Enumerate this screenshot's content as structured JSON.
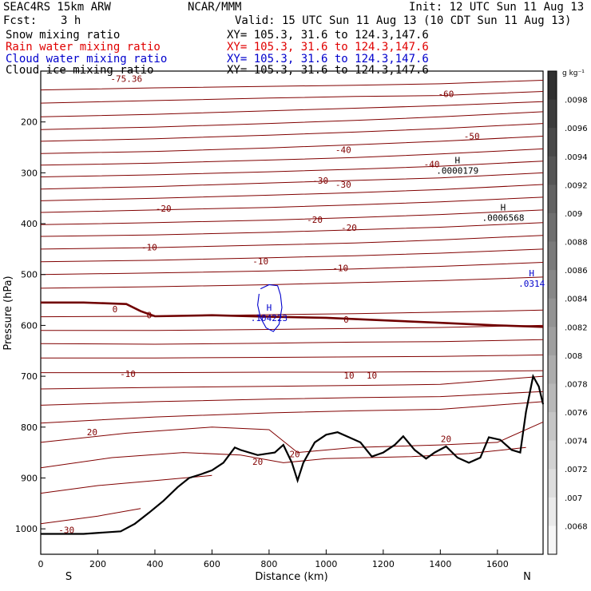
{
  "header": {
    "model": "SEAC4RS 15km ARW",
    "org": "NCAR/MMM",
    "init": "Init: 12 UTC Sun 11 Aug 13",
    "fcst_label": "Fcst:",
    "fcst_value": "3 h",
    "valid": "Valid: 15 UTC Sun 11 Aug 13 (10 CDT Sun 11 Aug 13)"
  },
  "fields": [
    {
      "name": "Snow mixing ratio",
      "xy": "XY= 105.3, 31.6 to 124.3,147.6",
      "color": "#000000"
    },
    {
      "name": "Rain water mixing ratio",
      "xy": "XY= 105.3, 31.6 to 124.3,147.6",
      "color": "#e00000"
    },
    {
      "name": "Cloud water mixing ratio",
      "xy": "XY= 105.3, 31.6 to 124.3,147.6",
      "color": "#0000cc"
    },
    {
      "name": "Cloud ice mixing ratio",
      "xy": "XY= 105.3, 31.6 to 124.3,147.6",
      "color": "#000000"
    }
  ],
  "chart_data": {
    "type": "line",
    "xlabel": "Distance (km)",
    "ylabel": "Pressure (hPa)",
    "xlim": [
      0,
      1760
    ],
    "ylim": [
      1050,
      100
    ],
    "x_ticks": [
      0,
      200,
      400,
      600,
      800,
      1000,
      1200,
      1400,
      1600
    ],
    "y_ticks": [
      200,
      300,
      400,
      500,
      600,
      700,
      800,
      900,
      1000
    ],
    "direction_left": "S",
    "direction_right": "N",
    "contour_color": "#800000",
    "zero_isotherm_color": "#700000",
    "terrain_color": "#000000",
    "cloud_water_color": "#0000cc",
    "isotherms": [
      {
        "x": [
          0,
          400,
          800,
          1100,
          1400,
          1760
        ],
        "p": [
          137,
          133,
          130,
          128,
          125,
          118
        ]
      },
      {
        "x": [
          0,
          400,
          800,
          1100,
          1400,
          1760
        ],
        "p": [
          163,
          158,
          153,
          150,
          148,
          140
        ]
      },
      {
        "x": [
          0,
          400,
          800,
          1100,
          1400,
          1760
        ],
        "p": [
          190,
          185,
          178,
          173,
          168,
          160
        ]
      },
      {
        "x": [
          0,
          400,
          800,
          1100,
          1400,
          1760
        ],
        "p": [
          215,
          210,
          203,
          197,
          190,
          180
        ]
      },
      {
        "x": [
          0,
          400,
          800,
          1100,
          1400,
          1760
        ],
        "p": [
          238,
          233,
          226,
          220,
          213,
          203
        ]
      },
      {
        "x": [
          0,
          400,
          800,
          1100,
          1400,
          1760
        ],
        "p": [
          262,
          258,
          251,
          245,
          238,
          228
        ]
      },
      {
        "x": [
          0,
          400,
          800,
          1100,
          1400,
          1760
        ],
        "p": [
          285,
          281,
          275,
          270,
          263,
          253
        ]
      },
      {
        "x": [
          0,
          400,
          800,
          1100,
          1400,
          1760
        ],
        "p": [
          308,
          304,
          298,
          293,
          287,
          277
        ]
      },
      {
        "x": [
          0,
          400,
          800,
          1100,
          1400,
          1760
        ],
        "p": [
          332,
          327,
          320,
          315,
          310,
          300
        ]
      },
      {
        "x": [
          0,
          400,
          800,
          1100,
          1400,
          1760
        ],
        "p": [
          355,
          350,
          344,
          339,
          333,
          323
        ]
      },
      {
        "x": [
          0,
          400,
          800,
          1100,
          1400,
          1760
        ],
        "p": [
          378,
          373,
          368,
          363,
          357,
          348
        ]
      },
      {
        "x": [
          0,
          400,
          800,
          1100,
          1400,
          1760
        ],
        "p": [
          402,
          398,
          393,
          388,
          382,
          373
        ]
      },
      {
        "x": [
          0,
          400,
          800,
          1100,
          1400,
          1760
        ],
        "p": [
          425,
          422,
          417,
          412,
          407,
          398
        ]
      },
      {
        "x": [
          0,
          400,
          800,
          1100,
          1400,
          1760
        ],
        "p": [
          450,
          447,
          442,
          438,
          432,
          423
        ]
      },
      {
        "x": [
          0,
          400,
          800,
          1100,
          1400,
          1760
        ],
        "p": [
          475,
          472,
          467,
          463,
          458,
          450
        ]
      },
      {
        "x": [
          0,
          400,
          800,
          1100,
          1400,
          1760
        ],
        "p": [
          500,
          497,
          493,
          489,
          484,
          476
        ]
      },
      {
        "x": [
          0,
          400,
          800,
          1100,
          1400,
          1760
        ],
        "p": [
          527,
          524,
          520,
          516,
          512,
          505
        ]
      },
      {
        "x": [
          0,
          400,
          800,
          1100,
          1400,
          1760
        ],
        "p": [
          583,
          582,
          579,
          577,
          574,
          570
        ]
      },
      {
        "x": [
          0,
          400,
          800,
          1100,
          1400,
          1760
        ],
        "p": [
          610,
          610,
          608,
          606,
          604,
          600
        ]
      },
      {
        "x": [
          0,
          400,
          800,
          1100,
          1400,
          1760
        ],
        "p": [
          636,
          637,
          635,
          633,
          632,
          628
        ]
      },
      {
        "x": [
          0,
          400,
          800,
          1100,
          1400,
          1760
        ],
        "p": [
          664,
          664,
          663,
          662,
          661,
          658
        ]
      },
      {
        "x": [
          0,
          400,
          800,
          1100,
          1400,
          1760
        ],
        "p": [
          693,
          693,
          692,
          692,
          691,
          689
        ]
      },
      {
        "x": [
          0,
          400,
          800,
          1100,
          1400,
          1760
        ],
        "p": [
          725,
          722,
          720,
          718,
          716,
          700
        ]
      },
      {
        "x": [
          0,
          400,
          800,
          1100,
          1400,
          1760
        ],
        "p": [
          757,
          750,
          745,
          742,
          740,
          730
        ]
      },
      {
        "x": [
          0,
          400,
          800,
          1100,
          1400,
          1760
        ],
        "p": [
          792,
          780,
          772,
          768,
          765,
          750
        ]
      },
      {
        "x": [
          0,
          300,
          600,
          800,
          900,
          1100,
          1400,
          1600,
          1760
        ],
        "p": [
          830,
          812,
          800,
          805,
          850,
          840,
          835,
          830,
          790
        ]
      },
      {
        "x": [
          0,
          250,
          500,
          700,
          850,
          1000,
          1300,
          1500,
          1700
        ],
        "p": [
          880,
          860,
          850,
          855,
          870,
          862,
          858,
          852,
          840
        ]
      },
      {
        "x": [
          0,
          200,
          400,
          600
        ],
        "p": [
          930,
          915,
          905,
          895
        ]
      },
      {
        "x": [
          0,
          200,
          350
        ],
        "p": [
          990,
          975,
          960
        ]
      }
    ],
    "zero_isotherm": {
      "x": [
        0,
        150,
        300,
        350,
        400,
        600,
        800,
        1000,
        1200,
        1400,
        1600,
        1760
      ],
      "p": [
        555,
        555,
        558,
        572,
        582,
        580,
        583,
        585,
        590,
        595,
        600,
        603
      ]
    },
    "terrain": {
      "x": [
        0,
        150,
        280,
        330,
        380,
        430,
        480,
        520,
        560,
        600,
        640,
        680,
        700,
        760,
        820,
        850,
        880,
        900,
        920,
        960,
        1000,
        1040,
        1080,
        1120,
        1160,
        1200,
        1240,
        1270,
        1310,
        1350,
        1380,
        1420,
        1460,
        1500,
        1540,
        1570,
        1610,
        1650,
        1680,
        1700,
        1725,
        1745,
        1760
      ],
      "p": [
        1010,
        1010,
        1005,
        990,
        968,
        945,
        918,
        900,
        893,
        885,
        870,
        840,
        845,
        855,
        850,
        835,
        870,
        905,
        870,
        830,
        815,
        810,
        820,
        830,
        858,
        850,
        835,
        818,
        845,
        862,
        850,
        838,
        860,
        870,
        860,
        820,
        825,
        845,
        850,
        770,
        700,
        720,
        755
      ]
    },
    "cloud_water": {
      "x": [
        770,
        800,
        830,
        840,
        845,
        835,
        815,
        790,
        770,
        760,
        765
      ],
      "p": [
        528,
        520,
        522,
        540,
        565,
        598,
        612,
        605,
        585,
        560,
        538
      ]
    },
    "contour_labels": [
      {
        "text": "-75.36",
        "x": 300,
        "p": 115
      },
      {
        "text": "-60",
        "x": 1420,
        "p": 145
      },
      {
        "text": "-50",
        "x": 1510,
        "p": 228
      },
      {
        "text": "-40",
        "x": 1060,
        "p": 255
      },
      {
        "text": "-40",
        "x": 1370,
        "p": 283
      },
      {
        "text": "-30",
        "x": 980,
        "p": 315
      },
      {
        "text": "-30",
        "x": 1060,
        "p": 323
      },
      {
        "text": "-20",
        "x": 430,
        "p": 370
      },
      {
        "text": "-20",
        "x": 960,
        "p": 392
      },
      {
        "text": "-20",
        "x": 1080,
        "p": 408
      },
      {
        "text": "-10",
        "x": 380,
        "p": 446
      },
      {
        "text": "-10",
        "x": 770,
        "p": 474
      },
      {
        "text": "-10",
        "x": 1050,
        "p": 487
      },
      {
        "text": "0",
        "x": 260,
        "p": 568
      },
      {
        "text": "0",
        "x": 380,
        "p": 580
      },
      {
        "text": "0",
        "x": 1070,
        "p": 588
      },
      {
        "text": "-10",
        "x": 305,
        "p": 695
      },
      {
        "text": "10",
        "x": 1080,
        "p": 698
      },
      {
        "text": "10",
        "x": 1160,
        "p": 698
      },
      {
        "text": "20",
        "x": 180,
        "p": 810
      },
      {
        "text": "20",
        "x": 760,
        "p": 868
      },
      {
        "text": "20",
        "x": 890,
        "p": 853
      },
      {
        "text": "20",
        "x": 1420,
        "p": 823
      },
      {
        "text": "-30",
        "x": 90,
        "p": 1002
      }
    ],
    "highs": [
      {
        "value": ".104223",
        "x": 800,
        "p": 577,
        "color": "#0000cc"
      },
      {
        "value": ".0000179",
        "x": 1460,
        "p": 288,
        "color": "#000000"
      },
      {
        "value": ".0006568",
        "x": 1620,
        "p": 380,
        "color": "#000000"
      },
      {
        "value": ".0314",
        "x": 1720,
        "p": 510,
        "color": "#0000cc"
      }
    ],
    "high_marker": "H",
    "colorbar": {
      "unit": "g kg⁻¹",
      "ticks": [
        ".0098",
        ".0096",
        ".0094",
        ".0092",
        ".009",
        ".0088",
        ".0086",
        ".0084",
        ".0082",
        ".008",
        ".0078",
        ".0076",
        ".0074",
        ".0072",
        ".007",
        ".0068"
      ],
      "color_top": "#303030",
      "color_bottom": "#f6f6f6"
    }
  }
}
